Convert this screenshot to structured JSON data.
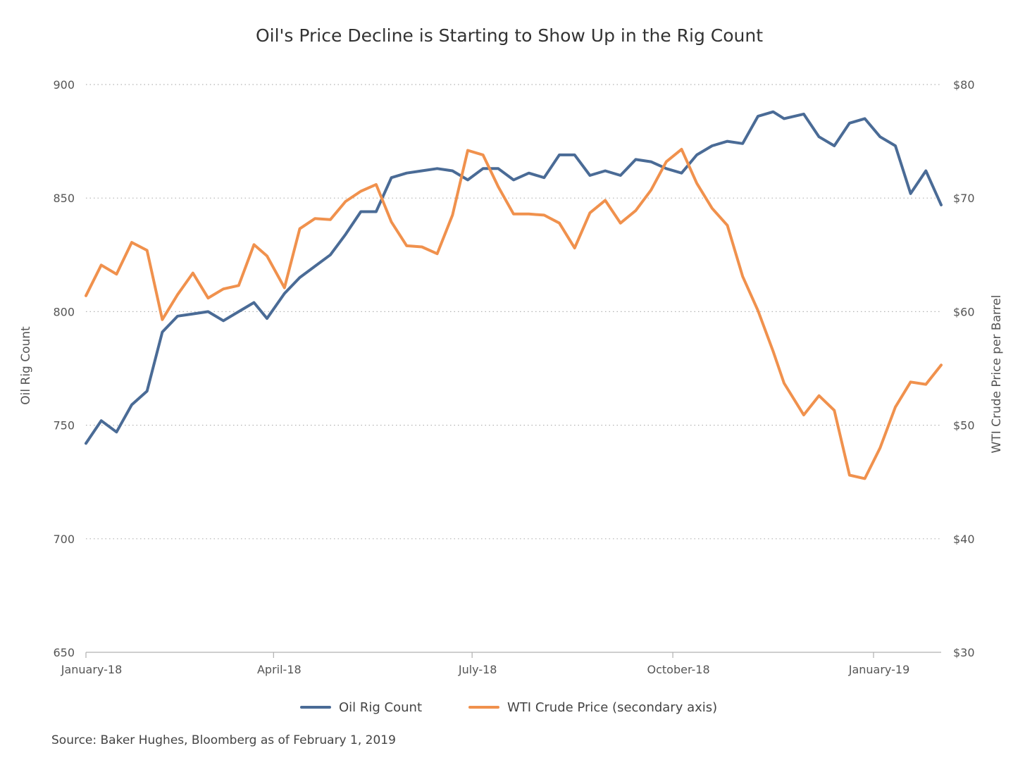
{
  "chart_data": {
    "type": "line",
    "title": "Oil's Price Decline is Starting to Show Up in the Rig Count",
    "ylabel": "Oil Rig Count",
    "y2label": "WTI Crude Price per Barrel",
    "ylim": [
      650,
      900
    ],
    "y2lim": [
      30,
      80
    ],
    "y_ticks": [
      "900",
      "850",
      "800",
      "750",
      "700",
      "650"
    ],
    "y2_ticks": [
      "$80",
      "$70",
      "$60",
      "$50",
      "$40",
      "$30"
    ],
    "x_range": [
      "2018-01-05",
      "2019-02-01"
    ],
    "x_ticks": [
      {
        "label": "January-18",
        "date": "2018-01-05"
      },
      {
        "label": "April-18",
        "date": "2018-04-01"
      },
      {
        "label": "July-18",
        "date": "2018-07-01"
      },
      {
        "label": "October-18",
        "date": "2018-10-01"
      },
      {
        "label": "January-19",
        "date": "2019-01-01"
      }
    ],
    "grid": true,
    "legend": "bottom",
    "series": [
      {
        "name": "Oil Rig Count",
        "axis": "primary",
        "color": "#4a6b96",
        "x": [
          "2018-01-05",
          "2018-01-12",
          "2018-01-19",
          "2018-01-26",
          "2018-02-02",
          "2018-02-09",
          "2018-02-16",
          "2018-02-23",
          "2018-03-02",
          "2018-03-09",
          "2018-03-16",
          "2018-03-23",
          "2018-03-29",
          "2018-04-06",
          "2018-04-13",
          "2018-04-20",
          "2018-04-27",
          "2018-05-04",
          "2018-05-11",
          "2018-05-18",
          "2018-05-25",
          "2018-06-01",
          "2018-06-08",
          "2018-06-15",
          "2018-06-22",
          "2018-06-29",
          "2018-07-06",
          "2018-07-13",
          "2018-07-20",
          "2018-07-27",
          "2018-08-03",
          "2018-08-10",
          "2018-08-17",
          "2018-08-24",
          "2018-08-31",
          "2018-09-07",
          "2018-09-14",
          "2018-09-21",
          "2018-09-28",
          "2018-10-05",
          "2018-10-12",
          "2018-10-19",
          "2018-10-26",
          "2018-11-02",
          "2018-11-09",
          "2018-11-16",
          "2018-11-21",
          "2018-11-30",
          "2018-12-07",
          "2018-12-14",
          "2018-12-21",
          "2018-12-28",
          "2019-01-04",
          "2019-01-11",
          "2019-01-18",
          "2019-01-25",
          "2019-02-01"
        ],
        "values": [
          742,
          752,
          747,
          759,
          765,
          791,
          798,
          799,
          800,
          796,
          800,
          804,
          797,
          808,
          815,
          820,
          825,
          834,
          844,
          844,
          859,
          861,
          862,
          863,
          862,
          858,
          863,
          863,
          858,
          861,
          859,
          869,
          869,
          860,
          862,
          860,
          867,
          866,
          863,
          861,
          869,
          873,
          875,
          874,
          886,
          888,
          885,
          887,
          877,
          873,
          883,
          885,
          877,
          873,
          852,
          862,
          847
        ]
      },
      {
        "name": "WTI Crude Price (secondary axis)",
        "axis": "secondary",
        "color": "#f0914d",
        "x": [
          "2018-01-05",
          "2018-01-12",
          "2018-01-19",
          "2018-01-26",
          "2018-02-02",
          "2018-02-09",
          "2018-02-16",
          "2018-02-23",
          "2018-03-02",
          "2018-03-09",
          "2018-03-16",
          "2018-03-23",
          "2018-03-29",
          "2018-04-06",
          "2018-04-13",
          "2018-04-20",
          "2018-04-27",
          "2018-05-04",
          "2018-05-11",
          "2018-05-18",
          "2018-05-25",
          "2018-06-01",
          "2018-06-08",
          "2018-06-15",
          "2018-06-22",
          "2018-06-29",
          "2018-07-06",
          "2018-07-13",
          "2018-07-20",
          "2018-07-27",
          "2018-08-03",
          "2018-08-10",
          "2018-08-17",
          "2018-08-24",
          "2018-08-31",
          "2018-09-07",
          "2018-09-14",
          "2018-09-21",
          "2018-09-28",
          "2018-10-05",
          "2018-10-12",
          "2018-10-19",
          "2018-10-26",
          "2018-11-02",
          "2018-11-09",
          "2018-11-16",
          "2018-11-21",
          "2018-11-30",
          "2018-12-07",
          "2018-12-14",
          "2018-12-21",
          "2018-12-28",
          "2019-01-04",
          "2019-01-11",
          "2019-01-18",
          "2019-01-25",
          "2019-02-01"
        ],
        "values": [
          61.4,
          64.1,
          63.3,
          66.1,
          65.4,
          59.3,
          61.5,
          63.4,
          61.2,
          62.0,
          62.3,
          65.9,
          64.9,
          62.1,
          67.3,
          68.2,
          68.1,
          69.7,
          70.6,
          71.2,
          67.9,
          65.8,
          65.7,
          65.1,
          68.5,
          74.2,
          73.8,
          71.0,
          68.6,
          68.6,
          68.5,
          67.8,
          65.6,
          68.7,
          69.8,
          67.8,
          68.9,
          70.7,
          73.2,
          74.3,
          71.3,
          69.1,
          67.6,
          63.1,
          60.1,
          56.5,
          53.7,
          50.9,
          52.6,
          51.3,
          45.6,
          45.3,
          48.0,
          51.6,
          53.8,
          53.6,
          55.3
        ]
      }
    ],
    "legend_entries": [
      "Oil Rig Count",
      "WTI Crude Price (secondary axis)"
    ],
    "source": "Source: Baker Hughes, Bloomberg as of February 1, 2019"
  }
}
